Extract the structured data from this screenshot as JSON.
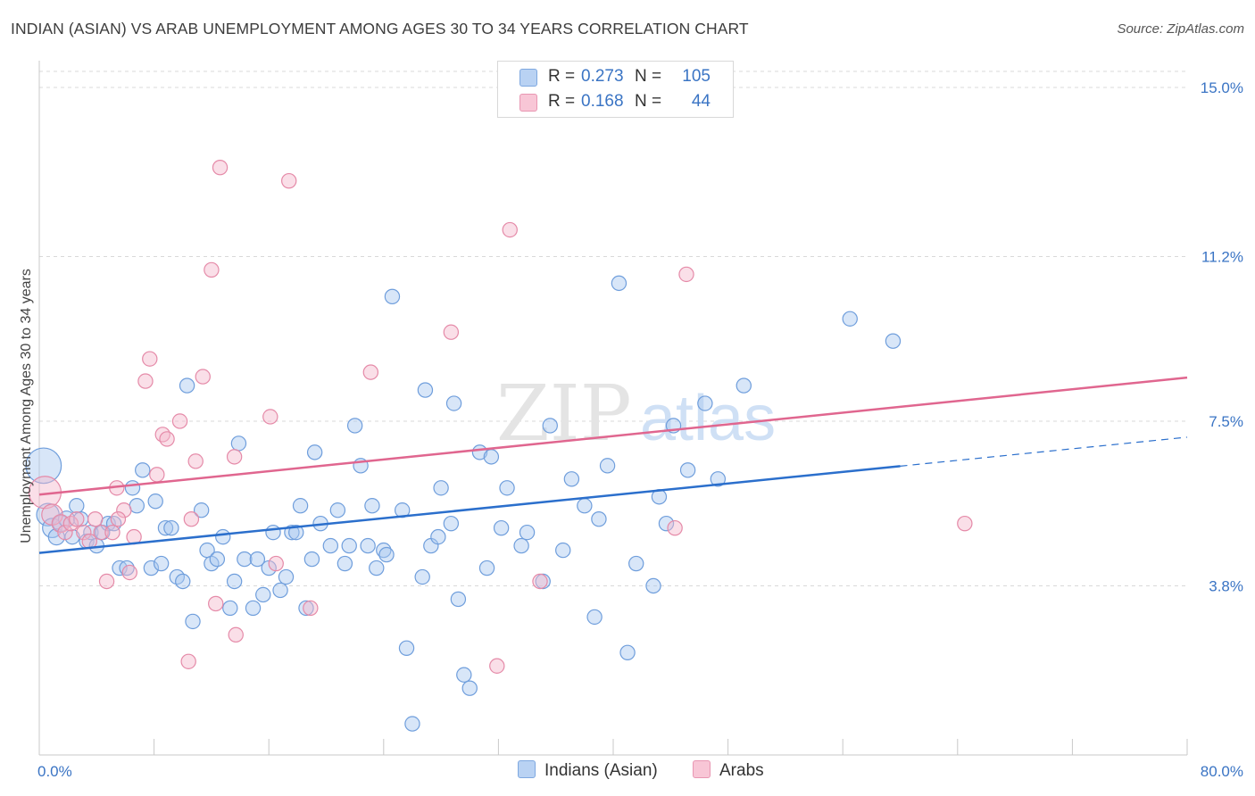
{
  "title": "INDIAN (ASIAN) VS ARAB UNEMPLOYMENT AMONG AGES 30 TO 34 YEARS CORRELATION CHART",
  "source": "Source: ZipAtlas.com",
  "watermark": {
    "zip": "ZIP",
    "atlas": "atlas"
  },
  "legend": {
    "r_label": "R =",
    "n_label": "N =",
    "rows": [
      {
        "r": "0.273",
        "n": "105"
      },
      {
        "r": "0.168",
        "n": "44"
      }
    ]
  },
  "colors": {
    "indian_fill": "#a9c8f0",
    "indian_stroke": "#6f9edc",
    "indian_line": "#2b6fcc",
    "arab_fill": "#f5b8cc",
    "arab_stroke": "#e58aa8",
    "arab_line": "#e0668f",
    "tick": "#3a74c4"
  },
  "chart_data": {
    "type": "scatter",
    "title": "INDIAN (ASIAN) VS ARAB UNEMPLOYMENT AMONG AGES 30 TO 34 YEARS CORRELATION CHART",
    "xlabel": "",
    "ylabel": "Unemployment Among Ages 30 to 34 years",
    "xlim": [
      0,
      80
    ],
    "ylim": [
      0,
      15.4
    ],
    "x_tick_labels": [
      "0.0%",
      "80.0%"
    ],
    "y_ticks": [
      3.8,
      7.5,
      11.2,
      15.0
    ],
    "y_tick_labels": [
      "3.8%",
      "7.5%",
      "11.2%",
      "15.0%"
    ],
    "grid": true,
    "legend_position": "top-center",
    "series": [
      {
        "name": "Indians (Asian)",
        "r": 0.273,
        "n": 105,
        "trend": {
          "x0": 0,
          "y0": 4.54,
          "x1": 60,
          "y1": 6.49,
          "dash_to_x": 80,
          "dash_to_y": 7.14
        },
        "points": [
          [
            0.3,
            6.5,
            2.2
          ],
          [
            0.6,
            5.4,
            1.4
          ],
          [
            0.9,
            5.1,
            1.2
          ],
          [
            1.2,
            4.9,
            1.0
          ],
          [
            1.5,
            5.2,
            1.0
          ],
          [
            1.9,
            5.3,
            1.0
          ],
          [
            2.3,
            4.9,
            0.9
          ],
          [
            2.6,
            5.6,
            0.9
          ],
          [
            2.9,
            5.3,
            0.9
          ],
          [
            3.3,
            4.8,
            0.9
          ],
          [
            3.6,
            5.0,
            0.9
          ],
          [
            4.0,
            4.7,
            0.9
          ],
          [
            4.4,
            5.0,
            0.9
          ],
          [
            4.8,
            5.2,
            0.9
          ],
          [
            5.2,
            5.2,
            0.9
          ],
          [
            5.6,
            4.2,
            0.9
          ],
          [
            6.1,
            4.2,
            0.9
          ],
          [
            6.5,
            6.0,
            0.9
          ],
          [
            6.8,
            5.6,
            0.9
          ],
          [
            7.2,
            6.4,
            0.9
          ],
          [
            7.8,
            4.2,
            0.9
          ],
          [
            8.1,
            5.7,
            0.9
          ],
          [
            8.5,
            4.3,
            0.9
          ],
          [
            8.8,
            5.1,
            0.9
          ],
          [
            9.2,
            5.1,
            0.9
          ],
          [
            9.6,
            4.0,
            0.9
          ],
          [
            10.0,
            3.9,
            0.9
          ],
          [
            10.3,
            8.3,
            0.9
          ],
          [
            10.7,
            3.0,
            0.9
          ],
          [
            11.3,
            5.5,
            0.9
          ],
          [
            11.7,
            4.6,
            0.9
          ],
          [
            12.0,
            4.3,
            0.9
          ],
          [
            12.4,
            4.4,
            0.9
          ],
          [
            12.8,
            4.9,
            0.9
          ],
          [
            13.3,
            3.3,
            0.9
          ],
          [
            13.6,
            3.9,
            0.9
          ],
          [
            13.9,
            7.0,
            0.9
          ],
          [
            14.3,
            4.4,
            0.9
          ],
          [
            14.9,
            3.3,
            0.9
          ],
          [
            15.2,
            4.4,
            0.9
          ],
          [
            15.6,
            3.6,
            0.9
          ],
          [
            16.0,
            4.2,
            0.9
          ],
          [
            16.3,
            5.0,
            0.9
          ],
          [
            16.8,
            3.7,
            0.9
          ],
          [
            17.2,
            4.0,
            0.9
          ],
          [
            17.6,
            5.0,
            0.9
          ],
          [
            17.9,
            5.0,
            0.9
          ],
          [
            18.2,
            5.6,
            0.9
          ],
          [
            18.6,
            3.3,
            0.9
          ],
          [
            19.0,
            4.4,
            0.9
          ],
          [
            19.2,
            6.8,
            0.9
          ],
          [
            19.6,
            5.2,
            0.9
          ],
          [
            20.3,
            4.7,
            0.9
          ],
          [
            20.8,
            5.5,
            0.9
          ],
          [
            21.3,
            4.3,
            0.9
          ],
          [
            21.6,
            4.7,
            0.9
          ],
          [
            22.0,
            7.4,
            0.9
          ],
          [
            22.4,
            6.5,
            0.9
          ],
          [
            22.9,
            4.7,
            0.9
          ],
          [
            23.2,
            5.6,
            0.9
          ],
          [
            23.5,
            4.2,
            0.9
          ],
          [
            24.0,
            4.6,
            0.9
          ],
          [
            24.2,
            4.5,
            0.9
          ],
          [
            24.6,
            10.3,
            0.9
          ],
          [
            25.3,
            5.5,
            0.9
          ],
          [
            25.6,
            2.4,
            0.9
          ],
          [
            26.0,
            0.7,
            0.9
          ],
          [
            26.7,
            4.0,
            0.9
          ],
          [
            26.9,
            8.2,
            0.9
          ],
          [
            27.3,
            4.7,
            0.9
          ],
          [
            27.8,
            4.9,
            0.9
          ],
          [
            28.0,
            6.0,
            0.9
          ],
          [
            28.7,
            5.2,
            0.9
          ],
          [
            28.9,
            7.9,
            0.9
          ],
          [
            29.2,
            3.5,
            0.9
          ],
          [
            29.6,
            1.8,
            0.9
          ],
          [
            30.0,
            1.5,
            0.9
          ],
          [
            30.7,
            6.8,
            0.9
          ],
          [
            31.2,
            4.2,
            0.9
          ],
          [
            31.5,
            6.7,
            0.9
          ],
          [
            32.2,
            5.1,
            0.9
          ],
          [
            32.6,
            6.0,
            0.9
          ],
          [
            33.6,
            4.7,
            0.9
          ],
          [
            34.0,
            5.0,
            0.9
          ],
          [
            35.1,
            3.9,
            0.9
          ],
          [
            35.6,
            7.4,
            0.9
          ],
          [
            36.5,
            4.6,
            0.9
          ],
          [
            37.1,
            6.2,
            0.9
          ],
          [
            38.0,
            5.6,
            0.9
          ],
          [
            38.7,
            3.1,
            0.9
          ],
          [
            39.0,
            5.3,
            0.9
          ],
          [
            39.6,
            6.5,
            0.9
          ],
          [
            40.4,
            10.6,
            0.9
          ],
          [
            41.0,
            2.3,
            0.9
          ],
          [
            41.6,
            4.3,
            0.9
          ],
          [
            42.8,
            3.8,
            0.9
          ],
          [
            43.2,
            5.8,
            0.9
          ],
          [
            44.2,
            7.4,
            0.9
          ],
          [
            45.2,
            6.4,
            0.9
          ],
          [
            46.4,
            7.9,
            0.9
          ],
          [
            47.3,
            6.2,
            0.9
          ],
          [
            49.1,
            8.3,
            0.9
          ],
          [
            56.5,
            9.8,
            0.9
          ],
          [
            59.5,
            9.3,
            0.9
          ],
          [
            43.7,
            5.2,
            0.9
          ]
        ]
      },
      {
        "name": "Arabs",
        "r": 0.168,
        "n": 44,
        "trend": {
          "x0": 0,
          "y0": 5.85,
          "x1": 80,
          "y1": 8.48
        },
        "points": [
          [
            0.4,
            5.9,
            2.0
          ],
          [
            0.9,
            5.4,
            1.3
          ],
          [
            1.5,
            5.2,
            1.1
          ],
          [
            1.8,
            5.0,
            0.9
          ],
          [
            2.2,
            5.2,
            0.9
          ],
          [
            2.6,
            5.3,
            0.9
          ],
          [
            3.1,
            5.0,
            0.9
          ],
          [
            3.5,
            4.8,
            0.9
          ],
          [
            3.9,
            5.3,
            0.9
          ],
          [
            4.3,
            5.0,
            0.9
          ],
          [
            4.7,
            3.9,
            0.9
          ],
          [
            5.1,
            5.0,
            0.9
          ],
          [
            5.4,
            6.0,
            0.9
          ],
          [
            5.9,
            5.5,
            0.9
          ],
          [
            6.3,
            4.1,
            0.9
          ],
          [
            6.6,
            4.9,
            0.9
          ],
          [
            7.4,
            8.4,
            0.9
          ],
          [
            7.7,
            8.9,
            0.9
          ],
          [
            8.2,
            6.3,
            0.9
          ],
          [
            8.6,
            7.2,
            0.9
          ],
          [
            8.9,
            7.1,
            0.9
          ],
          [
            9.8,
            7.5,
            0.9
          ],
          [
            10.4,
            2.1,
            0.9
          ],
          [
            10.6,
            5.3,
            0.9
          ],
          [
            10.9,
            6.6,
            0.9
          ],
          [
            11.4,
            8.5,
            0.9
          ],
          [
            12.0,
            10.9,
            0.9
          ],
          [
            12.3,
            3.4,
            0.9
          ],
          [
            12.6,
            13.2,
            0.9
          ],
          [
            13.6,
            6.7,
            0.9
          ],
          [
            13.7,
            2.7,
            0.9
          ],
          [
            16.1,
            7.6,
            0.9
          ],
          [
            16.5,
            4.3,
            0.9
          ],
          [
            17.4,
            12.9,
            0.9
          ],
          [
            18.9,
            3.3,
            0.9
          ],
          [
            23.1,
            8.6,
            0.9
          ],
          [
            28.7,
            9.5,
            0.9
          ],
          [
            31.9,
            2.0,
            0.9
          ],
          [
            32.8,
            11.8,
            0.9
          ],
          [
            34.9,
            3.9,
            0.9
          ],
          [
            44.3,
            5.1,
            0.9
          ],
          [
            45.1,
            10.8,
            0.9
          ],
          [
            64.5,
            5.2,
            0.9
          ],
          [
            5.5,
            5.3,
            0.9
          ]
        ]
      }
    ]
  }
}
